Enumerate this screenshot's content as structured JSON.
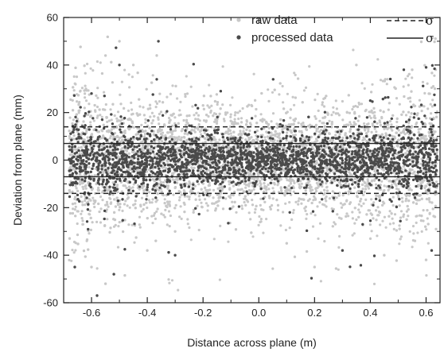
{
  "chart_data": {
    "type": "scatter",
    "xlabel": "Distance across plane (m)",
    "ylabel": "Deviation from plane (mm)",
    "xlim": [
      -0.7,
      0.65
    ],
    "ylim": [
      -60,
      60
    ],
    "x_ticks": [
      -0.6,
      -0.4,
      -0.2,
      0.0,
      0.2,
      0.4,
      0.6
    ],
    "x_tick_labels": [
      "-0.6",
      "-0.4",
      "-0.2",
      "0.0",
      "0.2",
      "0.4",
      "0.6"
    ],
    "y_ticks": [
      -60,
      -40,
      -20,
      0,
      20,
      40,
      60
    ],
    "y_tick_labels": [
      "-60",
      "-40",
      "-20",
      "0",
      "20",
      "40",
      "60"
    ],
    "grid": false,
    "legend_position": "top-right",
    "series": [
      {
        "name": "raw data",
        "color": "#c8c8c8",
        "marker": "dot",
        "x_range": [
          -0.68,
          0.64
        ],
        "y_core_band": [
          -14,
          14
        ],
        "y_extent": [
          -55,
          52
        ],
        "sample_points": [
          [
            -0.62,
            30
          ],
          [
            -0.55,
            44
          ],
          [
            -0.5,
            50
          ],
          [
            -0.45,
            40
          ],
          [
            -0.6,
            -45
          ],
          [
            -0.55,
            -52
          ],
          [
            -0.4,
            -38
          ],
          [
            -0.3,
            -30
          ],
          [
            -0.2,
            23
          ],
          [
            0.1,
            -35
          ],
          [
            0.2,
            -45
          ],
          [
            0.35,
            40
          ],
          [
            0.45,
            -40
          ],
          [
            0.55,
            38
          ],
          [
            0.6,
            -42
          ]
        ]
      },
      {
        "name": "processed data",
        "color": "#4a4a4a",
        "marker": "dot",
        "x_range": [
          -0.68,
          0.64
        ],
        "y_core_band": [
          -7,
          7
        ],
        "y_extent": [
          -57,
          51
        ],
        "sample_points": [
          [
            -0.66,
            -45
          ],
          [
            -0.58,
            -57
          ],
          [
            -0.52,
            -48
          ],
          [
            -0.5,
            40
          ],
          [
            -0.36,
            50
          ],
          [
            -0.6,
            28
          ],
          [
            -0.3,
            -40
          ],
          [
            0.3,
            -38
          ],
          [
            0.4,
            25
          ],
          [
            0.52,
            38
          ],
          [
            0.6,
            39
          ],
          [
            0.62,
            -38
          ]
        ]
      }
    ],
    "lines": [
      {
        "name": "σ",
        "style": "dashed",
        "color": "#222222",
        "values": [
          14,
          -14
        ],
        "series": "raw data"
      },
      {
        "name": "σ",
        "style": "solid",
        "color": "#222222",
        "values": [
          7,
          -7
        ],
        "series": "processed data"
      }
    ],
    "legend": [
      {
        "label": "raw data",
        "marker_color": "#c8c8c8",
        "sigma_label": "σ",
        "sigma_style": "dashed"
      },
      {
        "label": "processed data",
        "marker_color": "#4a4a4a",
        "sigma_label": "σ",
        "sigma_style": "solid"
      }
    ]
  }
}
